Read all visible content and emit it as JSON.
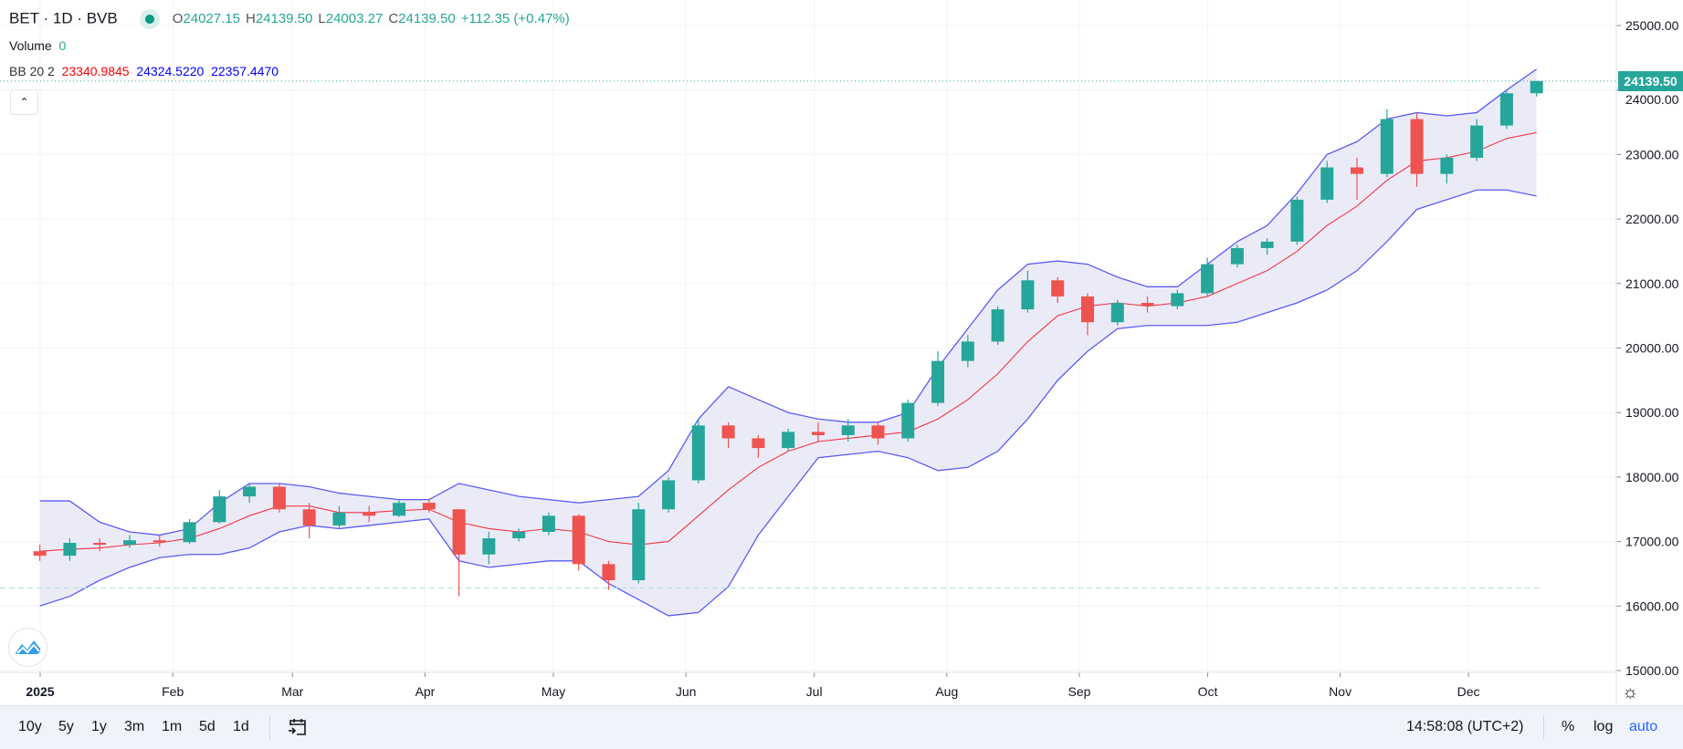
{
  "header": {
    "symbol": "BET",
    "interval": "1D",
    "exchange": "BVB",
    "title": "BET · 1D · BVB",
    "status_color": "#089981",
    "ohlc": {
      "o_label": "O",
      "o": "24027.15",
      "h_label": "H",
      "h": "24139.50",
      "l_label": "L",
      "l": "24003.27",
      "c_label": "C",
      "c": "24139.50",
      "change": "+112.35 (+0.47%)"
    },
    "volume_label": "Volume",
    "volume_value": "0",
    "bb_label": "BB 20 2",
    "bb_basis": "23340.9845",
    "bb_upper": "24324.5220",
    "bb_lower": "22357.4470",
    "collapse_icon": "chevron-up-icon"
  },
  "price_label": "24139.50",
  "toolbar": {
    "ranges": [
      "10y",
      "5y",
      "1y",
      "3m",
      "1m",
      "5d",
      "1d"
    ],
    "goto_icon": "calendar-goto-icon",
    "time": "14:58:08 (UTC+2)",
    "percent": "%",
    "log": "log",
    "auto": "auto"
  },
  "colors": {
    "up": "#26a69a",
    "down": "#ef5350",
    "bb_band": "#5b5bf5",
    "bb_basis": "#f23645",
    "bb_fill": "#e8e8f6",
    "auto": "#2962ff"
  },
  "chart_data": {
    "type": "candlestick",
    "title": "BET · 1D · BVB",
    "ylim": [
      15000,
      25400
    ],
    "y_ticks": [
      15000,
      16000,
      17000,
      18000,
      19000,
      20000,
      21000,
      22000,
      23000,
      24000,
      25000
    ],
    "y_tick_labels": [
      "15000.00",
      "16000.00",
      "17000.00",
      "18000.00",
      "19000.00",
      "20000.00",
      "21000.00",
      "22000.00",
      "23000.00",
      "24000.00",
      "25000.00"
    ],
    "x_ticks": [
      {
        "label": "2025",
        "date": "2025-01-01",
        "bold": true
      },
      {
        "label": "Feb",
        "date": "2025-02-01"
      },
      {
        "label": "Mar",
        "date": "2025-03-01"
      },
      {
        "label": "Apr",
        "date": "2025-04-01"
      },
      {
        "label": "May",
        "date": "2025-05-01"
      },
      {
        "label": "Jun",
        "date": "2025-06-01"
      },
      {
        "label": "Jul",
        "date": "2025-07-01"
      },
      {
        "label": "Aug",
        "date": "2025-08-01"
      },
      {
        "label": "Sep",
        "date": "2025-09-01"
      },
      {
        "label": "Oct",
        "date": "2025-10-01"
      },
      {
        "label": "Nov",
        "date": "2025-11-01"
      },
      {
        "label": "Dec",
        "date": "2025-12-01"
      }
    ],
    "grid": true,
    "last_price": 24139.5,
    "reference_line": 16280,
    "columns": [
      "date",
      "open",
      "high",
      "low",
      "close",
      "bb_upper",
      "bb_basis",
      "bb_lower"
    ],
    "rows": [
      [
        "2024-12-30",
        16850,
        16950,
        16700,
        16780,
        17630,
        16850,
        16000
      ],
      [
        "2025-01-06",
        16780,
        17050,
        16700,
        16980,
        17630,
        16880,
        16150
      ],
      [
        "2025-01-13",
        16980,
        17050,
        16850,
        16950,
        17300,
        16900,
        16400
      ],
      [
        "2025-01-20",
        16950,
        17100,
        16900,
        17020,
        17150,
        16950,
        16600
      ],
      [
        "2025-01-27",
        17020,
        17100,
        16920,
        16990,
        17100,
        16980,
        16750
      ],
      [
        "2025-02-03",
        16990,
        17350,
        16960,
        17300,
        17200,
        17050,
        16800
      ],
      [
        "2025-02-10",
        17300,
        17800,
        17280,
        17700,
        17600,
        17200,
        16800
      ],
      [
        "2025-02-17",
        17700,
        17900,
        17600,
        17850,
        17900,
        17400,
        16900
      ],
      [
        "2025-02-24",
        17850,
        17900,
        17450,
        17500,
        17900,
        17550,
        17150
      ],
      [
        "2025-03-03",
        17500,
        17600,
        17050,
        17250,
        17850,
        17550,
        17250
      ],
      [
        "2025-03-10",
        17250,
        17550,
        17200,
        17450,
        17750,
        17450,
        17200
      ],
      [
        "2025-03-17",
        17450,
        17550,
        17300,
        17400,
        17700,
        17450,
        17250
      ],
      [
        "2025-03-24",
        17400,
        17650,
        17380,
        17600,
        17650,
        17480,
        17300
      ],
      [
        "2025-03-31",
        17600,
        17650,
        17450,
        17500,
        17650,
        17500,
        17350
      ],
      [
        "2025-04-07",
        17500,
        17500,
        16150,
        16800,
        17900,
        17300,
        16700
      ],
      [
        "2025-04-14",
        16800,
        17150,
        16650,
        17050,
        17800,
        17200,
        16600
      ],
      [
        "2025-04-21",
        17050,
        17200,
        17000,
        17150,
        17700,
        17150,
        16650
      ],
      [
        "2025-04-28",
        17150,
        17450,
        17100,
        17400,
        17650,
        17200,
        16700
      ],
      [
        "2025-05-05",
        17400,
        17420,
        16550,
        16650,
        17600,
        17150,
        16700
      ],
      [
        "2025-05-12",
        16650,
        16700,
        16250,
        16400,
        17650,
        17000,
        16350
      ],
      [
        "2025-05-19",
        16400,
        17600,
        16350,
        17500,
        17700,
        16950,
        16100
      ],
      [
        "2025-05-26",
        17500,
        18000,
        17450,
        17950,
        18100,
        17000,
        15850
      ],
      [
        "2025-06-02",
        17950,
        18900,
        17900,
        18800,
        18900,
        17400,
        15900
      ],
      [
        "2025-06-09",
        18800,
        18850,
        18450,
        18600,
        19400,
        17800,
        16300
      ],
      [
        "2025-06-16",
        18600,
        18650,
        18300,
        18450,
        19200,
        18150,
        17100
      ],
      [
        "2025-06-23",
        18450,
        18750,
        18400,
        18700,
        19000,
        18400,
        17700
      ],
      [
        "2025-06-30",
        18700,
        18850,
        18550,
        18650,
        18900,
        18550,
        18300
      ],
      [
        "2025-07-07",
        18650,
        18900,
        18550,
        18800,
        18850,
        18600,
        18350
      ],
      [
        "2025-07-14",
        18800,
        18850,
        18500,
        18600,
        18850,
        18650,
        18400
      ],
      [
        "2025-07-21",
        18600,
        19200,
        18550,
        19150,
        19000,
        18700,
        18300
      ],
      [
        "2025-07-28",
        19150,
        19950,
        19100,
        19800,
        19700,
        18900,
        18100
      ],
      [
        "2025-08-04",
        19800,
        20200,
        19700,
        20100,
        20300,
        19200,
        18150
      ],
      [
        "2025-08-11",
        20100,
        20650,
        20050,
        20600,
        20900,
        19600,
        18400
      ],
      [
        "2025-08-18",
        20600,
        21200,
        20550,
        21050,
        21300,
        20100,
        18900
      ],
      [
        "2025-08-25",
        21050,
        21100,
        20700,
        20800,
        21350,
        20500,
        19500
      ],
      [
        "2025-09-01",
        20800,
        20850,
        20200,
        20400,
        21300,
        20650,
        19950
      ],
      [
        "2025-09-08",
        20400,
        20750,
        20350,
        20700,
        21100,
        20700,
        20300
      ],
      [
        "2025-09-15",
        20700,
        20800,
        20550,
        20650,
        20950,
        20650,
        20350
      ],
      [
        "2025-09-22",
        20650,
        20900,
        20600,
        20850,
        20950,
        20700,
        20350
      ],
      [
        "2025-09-29",
        20850,
        21400,
        20800,
        21300,
        21300,
        20800,
        20350
      ],
      [
        "2025-10-06",
        21300,
        21600,
        21250,
        21550,
        21650,
        21000,
        20400
      ],
      [
        "2025-10-13",
        21550,
        21700,
        21450,
        21650,
        21900,
        21200,
        20550
      ],
      [
        "2025-10-20",
        21650,
        22350,
        21600,
        22300,
        22400,
        21500,
        20700
      ],
      [
        "2025-10-27",
        22300,
        22900,
        22250,
        22800,
        23000,
        21900,
        20900
      ],
      [
        "2025-11-03",
        22800,
        22950,
        22300,
        22700,
        23200,
        22200,
        21200
      ],
      [
        "2025-11-10",
        22700,
        23700,
        22650,
        23550,
        23550,
        22600,
        21650
      ],
      [
        "2025-11-17",
        23550,
        23650,
        22500,
        22700,
        23650,
        22900,
        22150
      ],
      [
        "2025-11-24",
        22700,
        23000,
        22550,
        22950,
        23600,
        22950,
        22300
      ],
      [
        "2025-12-01",
        22950,
        23550,
        22900,
        23450,
        23650,
        23050,
        22450
      ],
      [
        "2025-12-08",
        23450,
        24000,
        23400,
        23950,
        24000,
        23250,
        22450
      ],
      [
        "2025-12-15",
        23950,
        24139.5,
        23900,
        24139.5,
        24324.52,
        23340.98,
        22357.45
      ]
    ]
  }
}
